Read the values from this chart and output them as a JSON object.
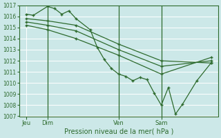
{
  "title": "Pression niveau de la mer( hPa )",
  "bg_color": "#cce8e8",
  "grid_color": "#ffffff",
  "line_color": "#2d6a2d",
  "y_min": 1007,
  "y_max": 1017,
  "y_ticks": [
    1007,
    1008,
    1009,
    1010,
    1011,
    1012,
    1013,
    1014,
    1015,
    1016,
    1017
  ],
  "x_min": 0,
  "x_max": 28,
  "x_tick_positions": [
    1,
    4,
    14,
    20
  ],
  "x_tick_labels": [
    "Jeu",
    "Dim",
    "Ven",
    "Sam"
  ],
  "x_vlines": [
    4,
    14,
    20
  ],
  "series": [
    {
      "x": [
        1,
        2,
        4,
        5,
        6,
        7,
        8,
        10,
        11,
        12,
        13,
        14,
        15,
        16,
        17,
        18,
        19,
        20,
        21,
        22,
        23,
        25,
        27
      ],
      "y": [
        1016.2,
        1016.1,
        1016.9,
        1016.7,
        1016.2,
        1016.5,
        1015.8,
        1014.8,
        1013.2,
        1012.1,
        1011.3,
        1010.8,
        1010.6,
        1010.2,
        1010.5,
        1010.3,
        1009.1,
        1008.0,
        1009.6,
        1007.2,
        1008.1,
        1010.2,
        1011.8
      ]
    },
    {
      "x": [
        1,
        4,
        8,
        14,
        20,
        27
      ],
      "y": [
        1015.8,
        1015.6,
        1015.2,
        1013.5,
        1012.0,
        1011.8
      ]
    },
    {
      "x": [
        1,
        4,
        8,
        14,
        20,
        27
      ],
      "y": [
        1015.5,
        1015.2,
        1014.7,
        1013.0,
        1011.5,
        1012.0
      ]
    },
    {
      "x": [
        1,
        4,
        8,
        14,
        20,
        27
      ],
      "y": [
        1015.2,
        1014.8,
        1014.0,
        1012.5,
        1010.8,
        1012.3
      ]
    }
  ]
}
